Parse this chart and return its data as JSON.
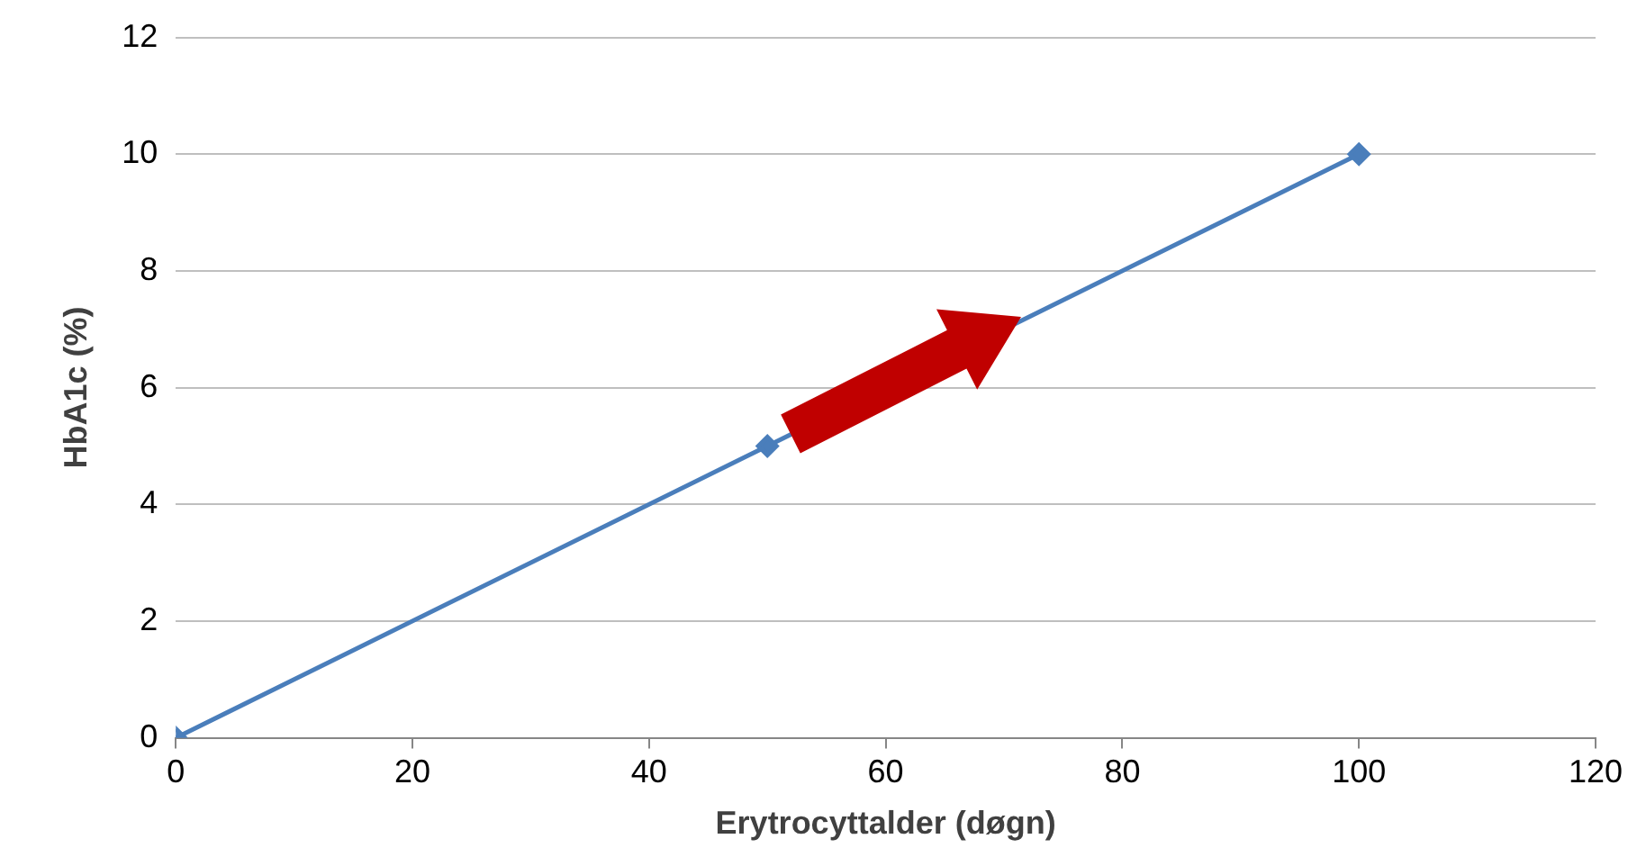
{
  "chart_data": {
    "type": "line",
    "xlabel": "Erytrocyttalder (døgn)",
    "ylabel": "HbA1c (%)",
    "x": [
      0,
      50,
      100
    ],
    "series": [
      {
        "color": "#4a7ebb",
        "values": [
          0,
          5,
          10
        ]
      }
    ],
    "xlim": [
      0,
      120
    ],
    "xticks": [
      0,
      20,
      40,
      60,
      80,
      100,
      120
    ],
    "ylim": [
      0,
      12
    ],
    "yticks": [
      0,
      2,
      4,
      6,
      8,
      10,
      12
    ],
    "grid": "y",
    "marker": "diamond",
    "line_style": "solid",
    "legend": false
  }
}
